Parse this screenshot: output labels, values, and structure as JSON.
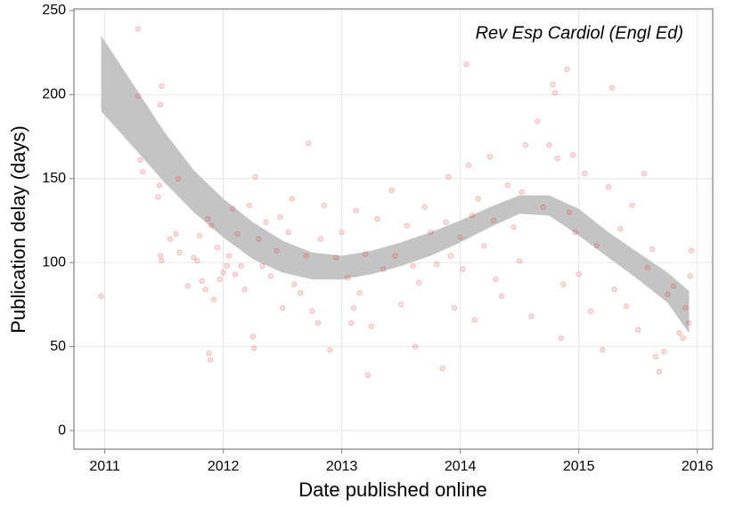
{
  "chart_data": {
    "type": "scatter",
    "annotation": "Rev Esp Cardiol (Engl Ed)",
    "x_label": "Date published online",
    "y_label": "Publication delay (days)",
    "xlim": [
      2010.74,
      2016.13
    ],
    "ylim": [
      -11.1,
      251
    ],
    "xticks": [
      2011,
      2012,
      2013,
      2014,
      2015,
      2016
    ],
    "yticks": [
      0,
      50,
      100,
      150,
      200,
      250
    ],
    "grid": true,
    "color": "#e8272a",
    "x": [
      2010.97,
      2011.28,
      2011.28,
      2011.3,
      2011.32,
      2011.48,
      2011.47,
      2011.46,
      2011.45,
      2011.47,
      2011.48,
      2011.55,
      2011.6,
      2011.62,
      2011.63,
      2011.7,
      2011.75,
      2011.78,
      2011.8,
      2011.82,
      2011.85,
      2011.87,
      2011.88,
      2011.89,
      2011.9,
      2011.92,
      2011.95,
      2011.97,
      2012.0,
      2012.03,
      2012.05,
      2012.08,
      2012.1,
      2012.12,
      2012.15,
      2012.18,
      2012.22,
      2012.25,
      2012.26,
      2012.27,
      2012.3,
      2012.33,
      2012.36,
      2012.4,
      2012.45,
      2012.48,
      2012.5,
      2012.55,
      2012.58,
      2012.6,
      2012.65,
      2012.7,
      2012.72,
      2012.75,
      2012.8,
      2012.82,
      2012.85,
      2012.9,
      2012.95,
      2013.0,
      2013.05,
      2013.08,
      2013.1,
      2013.12,
      2013.15,
      2013.2,
      2013.22,
      2013.25,
      2013.3,
      2013.35,
      2013.42,
      2013.45,
      2013.5,
      2013.55,
      2013.6,
      2013.62,
      2013.65,
      2013.7,
      2013.75,
      2013.8,
      2013.85,
      2013.88,
      2013.9,
      2013.92,
      2013.95,
      2014.0,
      2014.02,
      2014.05,
      2014.07,
      2014.1,
      2014.12,
      2014.15,
      2014.2,
      2014.25,
      2014.28,
      2014.3,
      2014.35,
      2014.4,
      2014.45,
      2014.5,
      2014.52,
      2014.55,
      2014.6,
      2014.65,
      2014.7,
      2014.75,
      2014.78,
      2014.8,
      2014.82,
      2014.85,
      2014.87,
      2014.9,
      2014.92,
      2014.95,
      2014.97,
      2015.0,
      2015.05,
      2015.1,
      2015.15,
      2015.2,
      2015.25,
      2015.28,
      2015.3,
      2015.35,
      2015.4,
      2015.45,
      2015.5,
      2015.55,
      2015.58,
      2015.62,
      2015.65,
      2015.68,
      2015.72,
      2015.75,
      2015.8,
      2015.85,
      2015.88,
      2015.9,
      2015.93,
      2015.95,
      2015.94
    ],
    "values": [
      80,
      239,
      199,
      161,
      154,
      205,
      194,
      146,
      139,
      104,
      101,
      114,
      117,
      150,
      106,
      86,
      103,
      101,
      116,
      89,
      84,
      126,
      46,
      42,
      122,
      78,
      109,
      90,
      94,
      98,
      104,
      132,
      93,
      117,
      98,
      84,
      134,
      56,
      49,
      151,
      114,
      98,
      124,
      92,
      107,
      127,
      73,
      118,
      138,
      87,
      82,
      104,
      171,
      71,
      64,
      114,
      134,
      48,
      103,
      118,
      91,
      64,
      73,
      131,
      82,
      105,
      33,
      62,
      126,
      96,
      143,
      104,
      75,
      122,
      98,
      50,
      88,
      133,
      118,
      99,
      37,
      124,
      151,
      104,
      73,
      115,
      96,
      218,
      158,
      128,
      66,
      138,
      110,
      163,
      125,
      90,
      80,
      146,
      121,
      101,
      142,
      170,
      68,
      184,
      133,
      170,
      206,
      201,
      162,
      55,
      87,
      215,
      130,
      164,
      118,
      93,
      153,
      71,
      110,
      48,
      145,
      204,
      84,
      120,
      74,
      134,
      60,
      153,
      97,
      108,
      44,
      35,
      47,
      81,
      86,
      58,
      55,
      73,
      64,
      107,
      92
    ],
    "band": {
      "color": "#c4c4c4",
      "x": [
        2010.97,
        2011.25,
        2011.5,
        2011.75,
        2012,
        2012.25,
        2012.5,
        2012.75,
        2013,
        2013.25,
        2013.5,
        2013.75,
        2014,
        2014.25,
        2014.5,
        2014.75,
        2015,
        2015.25,
        2015.5,
        2015.75,
        2015.93
      ],
      "upper": [
        235,
        205,
        178,
        155,
        138,
        124,
        113,
        106,
        104,
        107,
        112,
        118,
        125,
        133,
        140,
        140,
        132,
        118,
        106,
        94,
        83
      ],
      "lower": [
        190,
        168,
        148,
        130,
        115,
        102,
        94,
        90,
        90,
        93,
        98,
        104,
        112,
        121,
        129,
        128,
        116,
        103,
        90,
        76,
        58
      ]
    }
  }
}
